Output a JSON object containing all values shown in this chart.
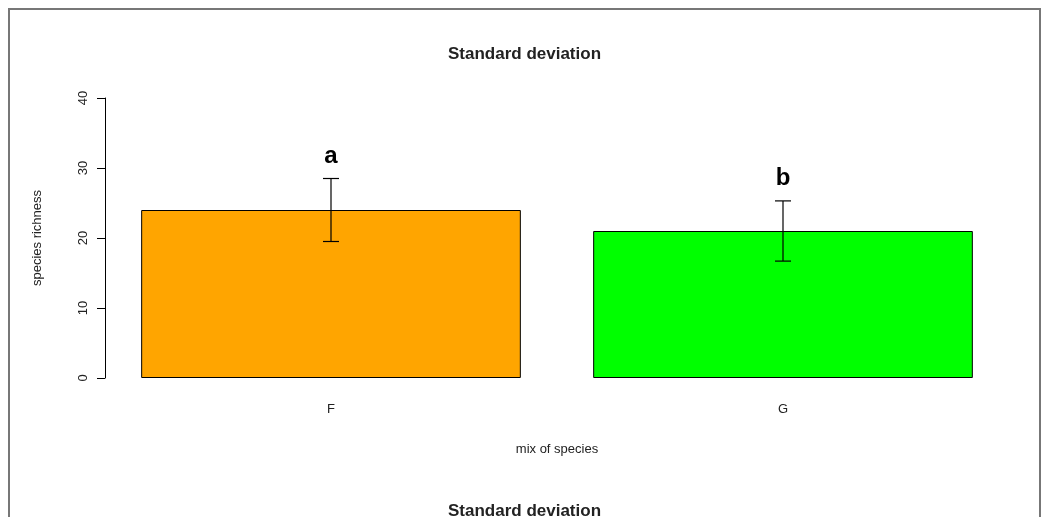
{
  "chart_data": {
    "type": "bar",
    "title": "Standard deviation",
    "xlabel": "mix of species",
    "ylabel": "species richness",
    "categories": [
      "F",
      "G"
    ],
    "values": [
      24,
      21
    ],
    "colors": [
      "#ffa500",
      "#00ff00"
    ],
    "errors": [
      4.5,
      4.3
    ],
    "ylim": [
      0,
      40
    ],
    "yticks": [
      0,
      10,
      20,
      30,
      40
    ],
    "grid": false,
    "annotations": [
      "a",
      "b",
      "Standard deviation"
    ]
  }
}
